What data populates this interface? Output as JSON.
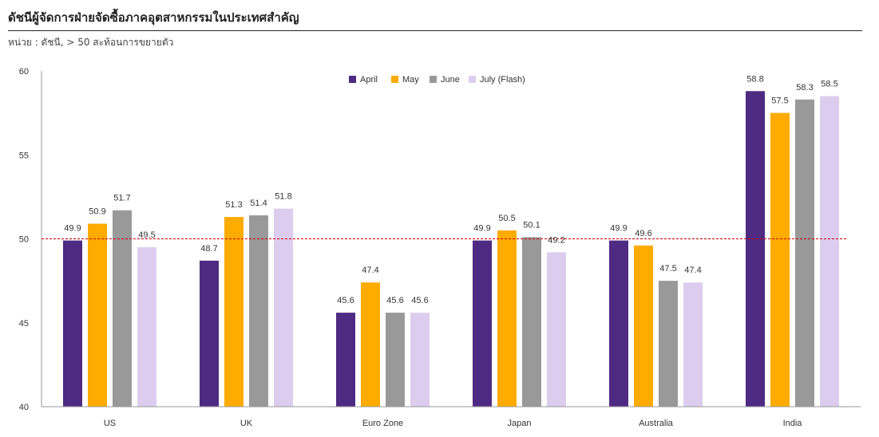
{
  "title": "ดัชนีผู้จัดการฝ่ายจัดซื้อภาคอุตสาหกรรมในประเทศสำคัญ",
  "subtitle": "หน่วย : ดัชนี, > 50 สะท้อนการขยายตัว",
  "chart_data": {
    "type": "bar",
    "categories": [
      "US",
      "UK",
      "Euro Zone",
      "Japan",
      "Australia",
      "India"
    ],
    "series": [
      {
        "name": "April",
        "color": "#4f2a82",
        "values": [
          49.9,
          48.7,
          45.6,
          49.9,
          49.9,
          58.8
        ]
      },
      {
        "name": "May",
        "color": "#ffab00",
        "values": [
          50.9,
          51.3,
          47.4,
          50.5,
          49.6,
          57.5
        ]
      },
      {
        "name": "June",
        "color": "#999999",
        "values": [
          51.7,
          51.4,
          45.6,
          50.1,
          47.5,
          58.3
        ]
      },
      {
        "name": "July (Flash)",
        "color": "#dccdee",
        "values": [
          49.5,
          51.8,
          45.6,
          49.2,
          47.4,
          58.5
        ]
      }
    ],
    "yticks": [
      "40",
      "45",
      "50",
      "55",
      "60"
    ],
    "ylim": [
      40,
      60
    ],
    "reference_line": {
      "y": 50,
      "color": "#cc0000",
      "style": "dashed"
    },
    "legend_position": "top-center",
    "grid": false
  }
}
